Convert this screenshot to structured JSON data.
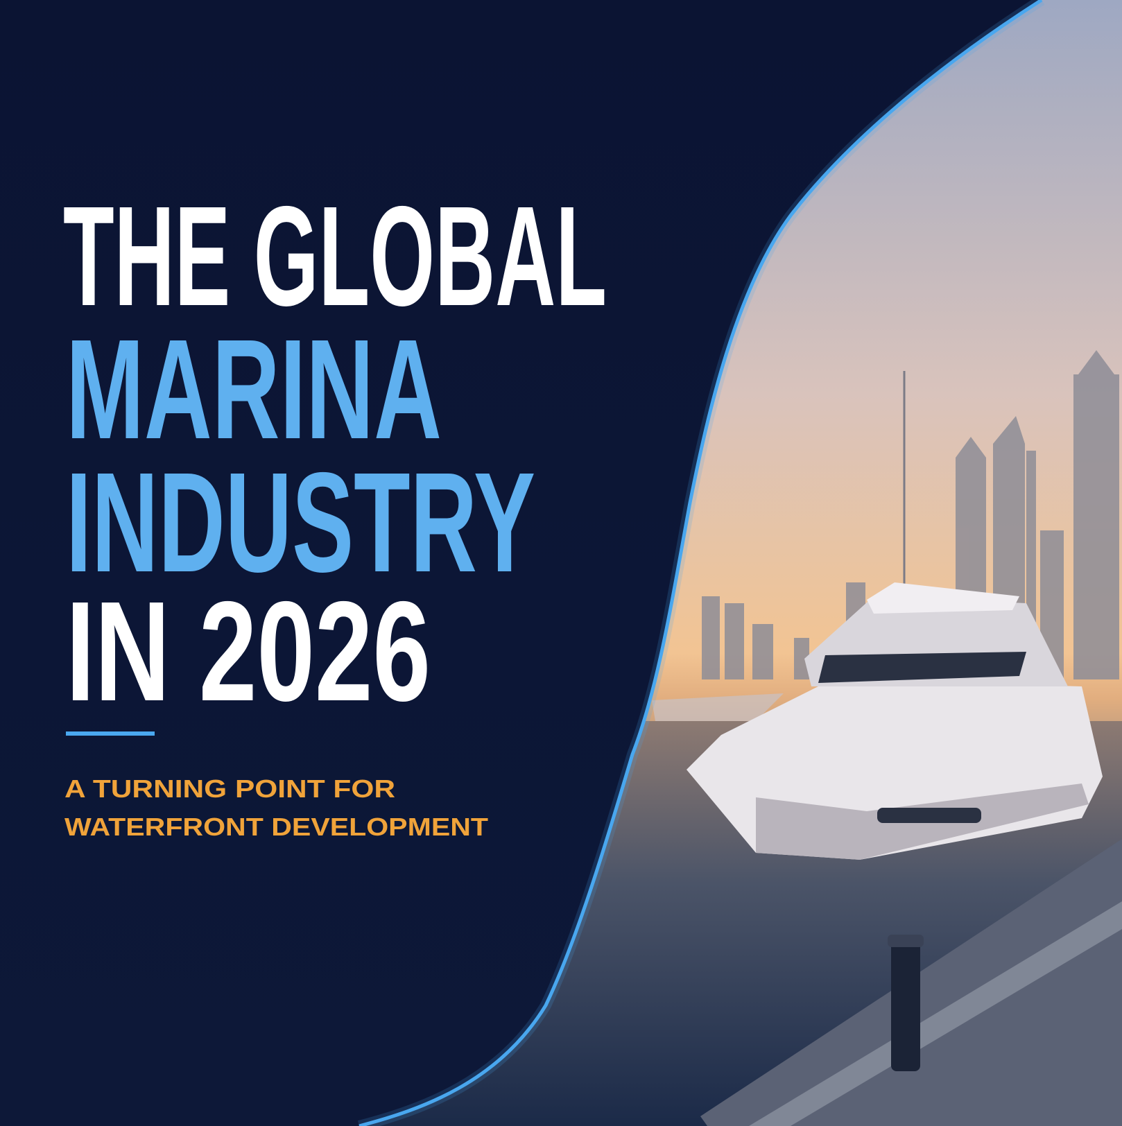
{
  "title": [
    "THE GLOBAL",
    "MARINA",
    "INDUSTRY",
    "IN 2026"
  ],
  "subtitle": [
    "A TURNING POINT FOR",
    "WATERFRONT DEVELOPMENT"
  ]
}
